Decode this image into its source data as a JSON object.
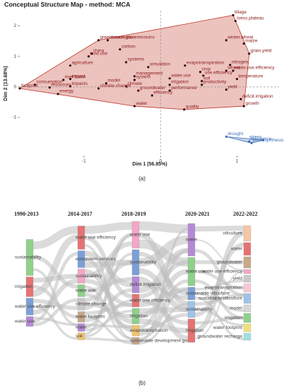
{
  "chart_data": {
    "type": "scatter",
    "title": "Conceptual Structure Map - method: MCA",
    "xlabel": "Dim 1 (56.85%)",
    "ylabel": "Dim 2 (13.68%)",
    "caption": "(a)",
    "xlim": [
      -1.84,
      1.55
    ],
    "ylim": [
      -2.25,
      2.5
    ],
    "xticks": [
      -1,
      0,
      1
    ],
    "yticks": [
      -1,
      0,
      1,
      2
    ],
    "vline": 0,
    "hline": 0,
    "series": [
      {
        "color": "#c0392b",
        "labels": [
          "tillage",
          "loess.plateau",
          "winter.wheat",
          "maize",
          "grain.yield",
          "conservation",
          "greenhouse.gas.emissions",
          "carbon",
          "china",
          "land.use",
          "agriculture",
          "systems",
          "simulation",
          "evapotranspiration",
          "nitrogen",
          "wheat",
          "crop",
          "use.efficiency",
          "water.use.efficiency",
          "soil",
          "temperature",
          "impact",
          "management",
          "system",
          "water.use",
          "productivity",
          "river.basin",
          "consumption",
          "resources",
          "impacts",
          "model",
          "climate",
          "irrigation",
          "climate.change",
          "groundwater",
          "performance",
          "yield",
          "deficit.irrigation",
          "footprint",
          "energy",
          "efficiency",
          "water",
          "quality",
          "growth"
        ],
        "x": [
          0.95,
          0.98,
          0.86,
          1.09,
          1.16,
          -0.69,
          -0.81,
          -0.53,
          -0.9,
          -0.94,
          -1.18,
          -0.45,
          -0.16,
          0.32,
          0.91,
          0.86,
          0.52,
          0.56,
          0.95,
          0.54,
          1.0,
          -1.18,
          -0.34,
          -0.34,
          0.12,
          0.54,
          -1.27,
          -1.64,
          -1.45,
          -1.18,
          -0.71,
          -0.45,
          0.12,
          -0.81,
          -0.29,
          0.12,
          0.86,
          1.05,
          -1.84,
          -1.34,
          -0.11,
          -0.34,
          0.31,
          1.09
        ],
        "values": [
          2.35,
          2.16,
          1.53,
          1.42,
          1.09,
          1.53,
          1.53,
          1.23,
          1.09,
          1.0,
          0.7,
          0.81,
          0.65,
          0.7,
          0.72,
          0.53,
          0.49,
          0.37,
          0.53,
          0.19,
          0.26,
          0.26,
          0.35,
          0.23,
          0.28,
          0.07,
          0.23,
          0.07,
          -0.02,
          0.02,
          0.12,
          0.02,
          0.07,
          -0.05,
          -0.12,
          -0.12,
          -0.09,
          -0.4,
          -0.05,
          -0.23,
          -0.28,
          -0.63,
          -0.74,
          -0.63
        ]
      },
      {
        "color": "#3d6fb5",
        "labels": [
          "drought",
          "resistance",
          "photosynthesis",
          "stress"
        ],
        "x": [
          0.86,
          1.16,
          1.19,
          1.34
        ],
        "values": [
          -1.63,
          -1.79,
          -1.84,
          -1.74
        ]
      }
    ]
  },
  "sankey": {
    "caption": "(b)",
    "columns": [
      {
        "header": "1990-2013",
        "nodes": [
          {
            "label": "sustainability",
            "color": "#8fd18b",
            "value": 51
          },
          {
            "label": "irrigation",
            "color": "#e57373",
            "value": 28
          },
          {
            "label": "water use efficiency",
            "color": "#7c9fd8",
            "value": 24
          },
          {
            "label": "water use",
            "color": "#b48ad6",
            "value": 14
          }
        ]
      },
      {
        "header": "2014-2017",
        "nodes": [
          {
            "label": "water use efficiency",
            "color": "#e57373",
            "value": 33
          },
          {
            "label": "ecosystem services",
            "color": "#7c9fd8",
            "value": 24
          },
          {
            "label": "sustainability",
            "color": "#f4a6c6",
            "value": 20
          },
          {
            "label": "water use",
            "color": "#8fd18b",
            "value": 17
          },
          {
            "label": "climate change",
            "color": "#c9c9c9",
            "value": 17
          },
          {
            "label": "water footprint",
            "color": "#c8a98b",
            "value": 15
          },
          {
            "label": "water",
            "color": "#b48ad6",
            "value": 11
          },
          {
            "label": "soil",
            "color": "#f2c46d",
            "value": 10
          }
        ]
      },
      {
        "header": "2018-2019",
        "nodes": [
          {
            "label": "water use",
            "color": "#f4a6c6",
            "value": 38
          },
          {
            "label": "sustainability",
            "color": "#7c9fd8",
            "value": 36
          },
          {
            "label": "deficit irrigation",
            "color": "#b48ad6",
            "value": 23
          },
          {
            "label": "water use efficiency",
            "color": "#e57373",
            "value": 18
          },
          {
            "label": "irrigation",
            "color": "#8fd18b",
            "value": 22
          },
          {
            "label": "evapotranspiration",
            "color": "#f2c46d",
            "value": 15
          },
          {
            "label": "sustainable development goals",
            "color": "#c8a98b",
            "value": 10
          }
        ]
      },
      {
        "header": "2020-2021",
        "nodes": [
          {
            "label": "water",
            "color": "#b48ad6",
            "value": 46
          },
          {
            "label": "water use",
            "color": "#8fd18b",
            "value": 40
          },
          {
            "label": "sustainable viticulture",
            "color": "#7c9fd8",
            "value": 18
          },
          {
            "label": "sustainability",
            "color": "#9fc3e8",
            "value": 23
          },
          {
            "label": "irrigation",
            "color": "#e57373",
            "value": 33
          }
        ]
      },
      {
        "header": "2022-2022",
        "nodes": [
          {
            "label": "viticulture",
            "color": "#f7c6a3",
            "value": 22
          },
          {
            "label": "water",
            "color": "#e57373",
            "value": 18
          },
          {
            "label": "groundwater",
            "color": "#c8a98b",
            "value": 16
          },
          {
            "label": "water use efficiency",
            "color": "#f4a6c6",
            "value": 6
          },
          {
            "label": "yield",
            "color": "#c9c9c9",
            "value": 10
          },
          {
            "label": "evapotranspiration",
            "color": "#f8c8d8",
            "value": 12
          },
          {
            "label": "sustainable viticulture",
            "color": "#9fc3e8",
            "value": 14
          },
          {
            "label": "model",
            "color": "#d6d6d6",
            "value": 10
          },
          {
            "label": "irrigation",
            "color": "#8fd18b",
            "value": 13
          },
          {
            "label": "water footprint",
            "color": "#f2e07a",
            "value": 11
          },
          {
            "label": "groundwater recharge",
            "color": "#9fe0e0",
            "value": 10
          }
        ]
      }
    ]
  }
}
